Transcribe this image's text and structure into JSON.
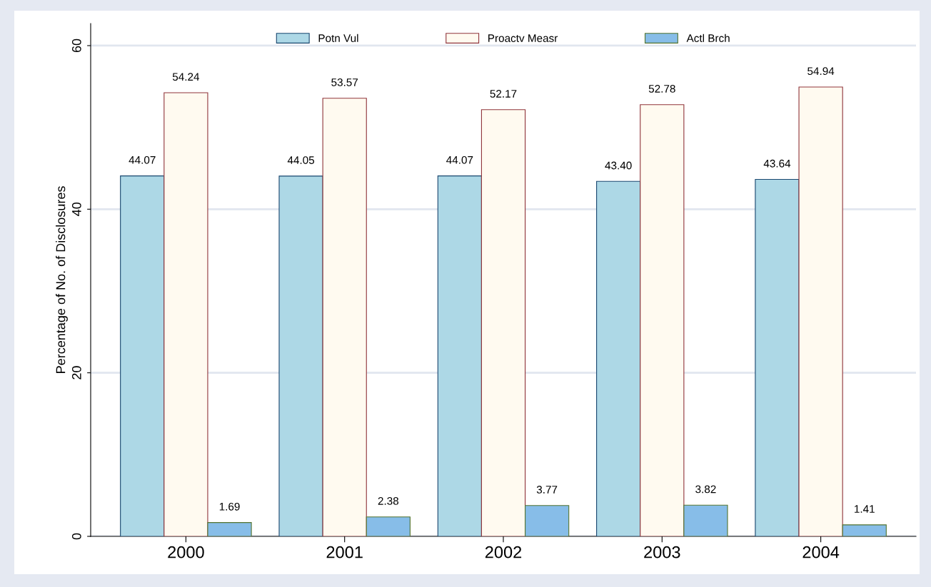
{
  "chart_data": {
    "type": "bar",
    "ylabel": "Percentage of No. of Disclosures",
    "categories": [
      "2000",
      "2001",
      "2002",
      "2003",
      "2004"
    ],
    "series": [
      {
        "name": "Potn Vul",
        "color": "#add8e6",
        "values": [
          44.07,
          44.05,
          44.07,
          43.4,
          43.64
        ],
        "value_labels": [
          "44.07",
          "44.05",
          "44.07",
          "43.40",
          "43.64"
        ]
      },
      {
        "name": "Proactv Measr",
        "color": "#fffaf0",
        "values": [
          54.24,
          53.57,
          52.17,
          52.78,
          54.94
        ],
        "value_labels": [
          "54.24",
          "53.57",
          "52.17",
          "52.78",
          "54.94"
        ]
      },
      {
        "name": "Actl Brch",
        "color": "#87bde8",
        "values": [
          1.69,
          2.38,
          3.77,
          3.82,
          1.41
        ],
        "value_labels": [
          "1.69",
          "2.38",
          "3.77",
          "3.82",
          "1.41"
        ]
      }
    ],
    "ylim": [
      0,
      62.7
    ],
    "yticks": [
      0,
      20,
      40,
      60
    ],
    "grid": "y",
    "legend": "top"
  }
}
